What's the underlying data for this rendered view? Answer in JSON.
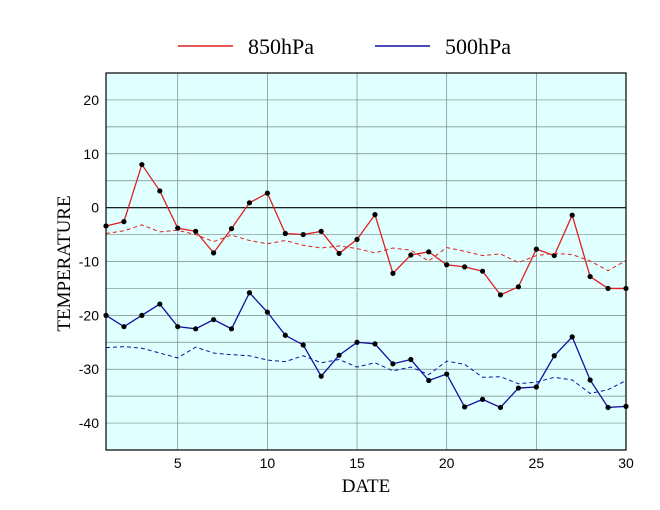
{
  "chart_data": {
    "type": "line",
    "xlabel": "DATE",
    "ylabel": "TEMPERATURE",
    "xlim": [
      1,
      30
    ],
    "ylim": [
      -45,
      25
    ],
    "xticks": [
      5,
      10,
      15,
      20,
      25,
      30
    ],
    "yticks": [
      20,
      10,
      0,
      -10,
      -20,
      -30,
      -40
    ],
    "grid": true,
    "legend_position": "top",
    "background_color": "#e0ffff",
    "zero_line": true,
    "x": [
      1,
      2,
      3,
      4,
      5,
      6,
      7,
      8,
      9,
      10,
      11,
      12,
      13,
      14,
      15,
      16,
      17,
      18,
      19,
      20,
      21,
      22,
      23,
      24,
      25,
      26,
      27,
      28,
      29,
      30
    ],
    "series": [
      {
        "name": "850hPa",
        "color": "#e02020",
        "style": "solid",
        "markers": true,
        "values": [
          -3.4,
          -2.6,
          8.0,
          3.1,
          -3.8,
          -4.4,
          -8.4,
          -3.9,
          0.9,
          2.7,
          -4.8,
          -5.0,
          -4.4,
          -8.5,
          -5.9,
          -1.3,
          -12.2,
          -8.8,
          -8.2,
          -10.6,
          -11.0,
          -11.8,
          -16.2,
          -14.7,
          -7.7,
          -8.9,
          -1.4,
          -12.8,
          -15.0,
          -15.0
        ]
      },
      {
        "name": "",
        "color": "#e02020",
        "style": "dashed",
        "markers": false,
        "values": [
          -4.8,
          -4.3,
          -3.2,
          -4.5,
          -4.2,
          -5.0,
          -6.3,
          -5.1,
          -6.1,
          -6.7,
          -6.1,
          -7.0,
          -7.5,
          -7.1,
          -7.6,
          -8.4,
          -7.5,
          -7.9,
          -9.9,
          -7.4,
          -8.1,
          -8.9,
          -8.6,
          -10.2,
          -8.9,
          -8.5,
          -8.7,
          -9.9,
          -11.7,
          -9.8
        ]
      },
      {
        "name": "500hPa",
        "color": "#1010a0",
        "style": "solid",
        "markers": true,
        "values": [
          -20.0,
          -22.1,
          -20.0,
          -17.9,
          -22.1,
          -22.5,
          -20.8,
          -22.5,
          -15.8,
          -19.4,
          -23.7,
          -25.5,
          -31.3,
          -27.4,
          -25.0,
          -25.3,
          -29.0,
          -28.2,
          -32.1,
          -30.9,
          -37.0,
          -35.6,
          -37.1,
          -33.5,
          -33.3,
          -27.5,
          -24.0,
          -32.0,
          -37.1,
          -36.9
        ]
      },
      {
        "name": "",
        "color": "#1010a0",
        "style": "dashed",
        "markers": false,
        "values": [
          -26.0,
          -25.8,
          -26.1,
          -27.0,
          -27.9,
          -25.9,
          -27.0,
          -27.3,
          -27.5,
          -28.3,
          -28.6,
          -27.5,
          -28.8,
          -28.2,
          -29.6,
          -28.8,
          -30.3,
          -29.6,
          -31.0,
          -28.5,
          -29.1,
          -31.5,
          -31.4,
          -32.7,
          -32.4,
          -31.5,
          -32.0,
          -34.5,
          -33.8,
          -32.1
        ]
      }
    ]
  }
}
